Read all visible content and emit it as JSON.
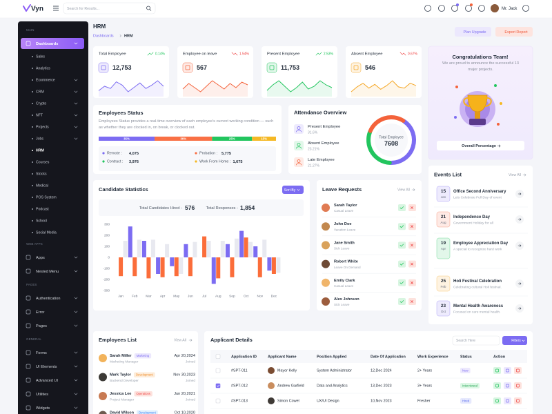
{
  "header": {
    "logo": "Vyn",
    "search_placeholder": "Search for Results...",
    "user": "Mr. Jack"
  },
  "sidebar": {
    "sections": [
      {
        "title": "MAIN",
        "items": [
          {
            "label": "Dashboards",
            "active": true,
            "expandable": true,
            "children": [
              {
                "label": "Sales"
              },
              {
                "label": "Analytics"
              },
              {
                "label": "Ecommerce",
                "expandable": true
              },
              {
                "label": "CRM",
                "expandable": true
              },
              {
                "label": "Crypto",
                "expandable": true
              },
              {
                "label": "NFT",
                "expandable": true
              },
              {
                "label": "Projects",
                "expandable": true
              },
              {
                "label": "Jobs",
                "expandable": true
              },
              {
                "label": "HRM",
                "active": true
              },
              {
                "label": "Courses"
              },
              {
                "label": "Stocks"
              },
              {
                "label": "Medical"
              },
              {
                "label": "POS System"
              },
              {
                "label": "Podcast"
              },
              {
                "label": "School"
              },
              {
                "label": "Social Media"
              }
            ]
          }
        ]
      },
      {
        "title": "WEB APPS",
        "items": [
          {
            "label": "Apps",
            "expandable": true
          },
          {
            "label": "Nested Menu",
            "expandable": true
          }
        ]
      },
      {
        "title": "PAGES",
        "items": [
          {
            "label": "Authentication",
            "expandable": true
          },
          {
            "label": "Error",
            "expandable": true
          },
          {
            "label": "Pages",
            "expandable": true
          }
        ]
      },
      {
        "title": "GENERAL",
        "items": [
          {
            "label": "Forms",
            "expandable": true
          },
          {
            "label": "UI Elements",
            "expandable": true
          },
          {
            "label": "Advanced UI",
            "expandable": true
          },
          {
            "label": "Utilities",
            "expandable": true
          },
          {
            "label": "Widgets",
            "expandable": true
          }
        ]
      }
    ]
  },
  "page": {
    "title": "HRM",
    "breadcrumb": [
      "Dashboards",
      "HRM"
    ],
    "buttons": [
      "Plan Upgrade",
      "Export Report"
    ]
  },
  "stat_cards": [
    {
      "title": "Total Employee",
      "change": "0.14%",
      "trend": "up",
      "value": "12,753",
      "color": "#7c6cf2",
      "sparkline": [
        22,
        26,
        24,
        30,
        27,
        21,
        25,
        29,
        24,
        27,
        31,
        26
      ]
    },
    {
      "title": "Employee on leave",
      "change": "1.54%",
      "trend": "down",
      "value": "567",
      "color": "#f4623a",
      "sparkline": [
        24,
        28,
        25,
        22,
        26,
        30,
        27,
        24,
        28,
        25,
        29,
        27
      ]
    },
    {
      "title": "Present Employee",
      "change": "2.53%",
      "trend": "up",
      "value": "11,753",
      "color": "#22c55e",
      "sparkline": [
        23,
        27,
        30,
        26,
        22,
        25,
        29,
        24,
        26,
        30,
        27,
        25
      ]
    },
    {
      "title": "Absent Employee",
      "change": "0.67%",
      "trend": "down",
      "value": "546",
      "color": "#f5a623",
      "sparkline": [
        21,
        25,
        28,
        24,
        27,
        23,
        26,
        30,
        25,
        24,
        28,
        26
      ]
    }
  ],
  "congrats": {
    "title": "Congratulations Team!",
    "text": "We are proud to announce the successful 13 major projects.",
    "button": "Overall Percentage"
  },
  "employees_status": {
    "title": "Employees Status",
    "description": "Employees Status provides a real-time overview of each employee's current working condition — such as whether they are clocked in, on break, or clocked out.",
    "segments": [
      {
        "label": "35%",
        "value": 35,
        "color": "#7c6cf2"
      },
      {
        "label": "36%",
        "value": 36,
        "color": "#f97045"
      },
      {
        "label": "25%",
        "value": 25,
        "color": "#22c55e"
      },
      {
        "label": "15%",
        "value": 15,
        "color": "#f5b824"
      }
    ],
    "stats": [
      {
        "label": "Remote :",
        "value": "4,075",
        "color": "#7c6cf2"
      },
      {
        "label": "Probation :",
        "value": "5,775",
        "color": "#f97045"
      },
      {
        "label": "Contract :",
        "value": "3,976",
        "color": "#22c55e"
      },
      {
        "label": "Work From Home :",
        "value": "1,675",
        "color": "#f5b824"
      }
    ]
  },
  "attendance": {
    "title": "Attendance Overview",
    "items": [
      {
        "label": "Present Employee",
        "percent": "31.6%",
        "value": 31.6,
        "color": "#7c6cf2"
      },
      {
        "label": "Absent Employee",
        "percent": "23.21%",
        "value": 23.21,
        "color": "#22c55e"
      },
      {
        "label": "Late Employee",
        "percent": "21.27%",
        "value": 21.27,
        "color": "#f4623a"
      }
    ],
    "center_label": "Total Employee",
    "center_value": "7608"
  },
  "candidate_statistics": {
    "title": "Candidate Statistics",
    "sort_button": "Sort By",
    "hired_label": "Total Candidates Hired -",
    "hired_value": "576",
    "responses_label": "Total Responses -",
    "responses_value": "1,854",
    "chart": {
      "type": "bar",
      "categories": [
        "Jan",
        "Feb",
        "Mar",
        "Apr",
        "May",
        "Jun",
        "Jul",
        "Aug",
        "Sep",
        "Oct",
        "Nov",
        "Dec"
      ],
      "series": [
        {
          "color": "#7c6cf2",
          "values": [
            null,
            280,
            150,
            -150,
            -80,
            120,
            null,
            -240,
            120,
            240,
            100,
            -120
          ]
        },
        {
          "color": "#fb6d3a",
          "values": [
            -170,
            -170,
            -190,
            -180,
            -170,
            -170,
            190,
            -190,
            -180,
            180,
            -180,
            -150
          ]
        },
        {
          "color": "#e8e9f0",
          "values": [
            150,
            160,
            160,
            120,
            -150,
            140,
            150,
            150,
            170,
            140,
            160,
            -140
          ]
        }
      ],
      "ylim": [
        -300,
        300
      ],
      "yticks": [
        300,
        200,
        100,
        0,
        -100,
        -200,
        -300
      ]
    }
  },
  "leave_requests": {
    "title": "Leave Requests",
    "view_all": "View All",
    "items": [
      {
        "name": "Sarah Taylor",
        "type": "Casual Leave"
      },
      {
        "name": "John Doe",
        "type": "Vacation Leave"
      },
      {
        "name": "Jane Smith",
        "type": "Sick Leave"
      },
      {
        "name": "Robert White",
        "type": "Leave On Demand"
      },
      {
        "name": "Emily Clark",
        "type": "Casual Leave"
      },
      {
        "name": "Alex Johnson",
        "type": "Sick Leave"
      }
    ]
  },
  "events": {
    "title": "Events List",
    "view_all": "View All",
    "items": [
      {
        "day": "15",
        "month": "Jan",
        "title": "Office Second Anniversary",
        "text": "Lets Celebrate Full Day of event"
      },
      {
        "day": "21",
        "month": "Aug",
        "title": "Independence Day",
        "text": "Government Holiday for all"
      },
      {
        "day": "19",
        "month": "Apr",
        "title": "Employee Appreciation Day",
        "text": "A special to recognize hard work"
      },
      {
        "day": "25",
        "month": "Feb",
        "title": "Holi Festival Celebration",
        "text": "Celebrating cultural Holi festival."
      },
      {
        "day": "23",
        "month": "Oct",
        "title": "Mental Health Awareness",
        "text": "Focused on care mental health."
      }
    ]
  },
  "employees_list": {
    "title": "Employees List",
    "view_all": "View All",
    "items": [
      {
        "name": "Sarah Miller",
        "badge": "Marketing",
        "role": "Marketing Manager",
        "date": "Apr 20,2024",
        "note": "Joined"
      },
      {
        "name": "Mark Taylor",
        "badge": "Development",
        "role": "Backend Developer",
        "date": "Nov 30,2023",
        "note": "Joined"
      },
      {
        "name": "Jessica Lee",
        "badge": "Operations",
        "role": "Project Manager",
        "date": "Jun 20,2021",
        "note": "Joined"
      },
      {
        "name": "David Wilson",
        "badge": "Development",
        "role": "",
        "date": "Oct 10,2020",
        "note": ""
      }
    ]
  },
  "applicants": {
    "title": "Applicant Details",
    "search_placeholder": "Search Here",
    "filter_button": "Filters",
    "columns": [
      "Application ID",
      "Applicant Name",
      "Position Applied",
      "Date Of Application",
      "Work Experience",
      "Status",
      "Action"
    ],
    "rows": [
      {
        "selected": false,
        "id": "#SPT-011",
        "name": "Mayor Kelly",
        "position": "System Administrator",
        "date": "12,Dec 2024",
        "experience": "2+ Years",
        "status": "New"
      },
      {
        "selected": true,
        "id": "#SPT-012",
        "name": "Andrew Garfield",
        "position": "Data and Analytics",
        "date": "13,Dec 2023",
        "experience": "3+ Years",
        "status": "Interviewed"
      },
      {
        "selected": false,
        "id": "#SPT-013",
        "name": "Simon Cowel",
        "position": "UX/UI Design",
        "date": "10,Nov 2023",
        "experience": "Fresher",
        "status": "Hired"
      }
    ]
  }
}
